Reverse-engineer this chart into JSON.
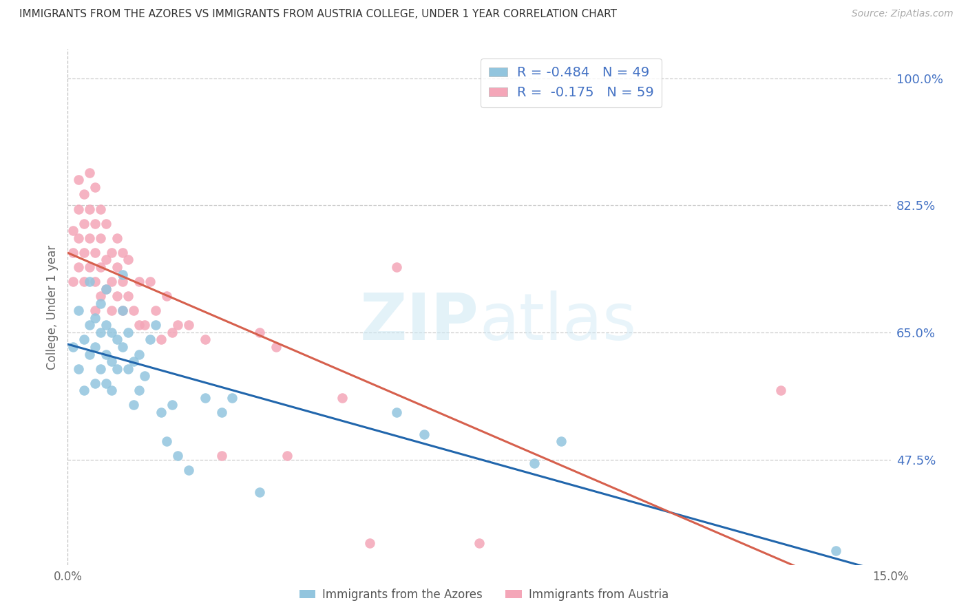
{
  "title": "IMMIGRANTS FROM THE AZORES VS IMMIGRANTS FROM AUSTRIA COLLEGE, UNDER 1 YEAR CORRELATION CHART",
  "source": "Source: ZipAtlas.com",
  "ylabel_label": "College, Under 1 year",
  "xmin": 0.0,
  "xmax": 0.15,
  "ymin": 0.33,
  "ymax": 1.04,
  "legend_label1": "Immigrants from the Azores",
  "legend_label2": "Immigrants from Austria",
  "R1": -0.484,
  "N1": 49,
  "R2": -0.175,
  "N2": 59,
  "color_blue": "#92c5de",
  "color_pink": "#f4a6b8",
  "line_color_blue": "#2166ac",
  "line_color_pink": "#d6604d",
  "text_color": "#4472c4",
  "background_color": "#ffffff",
  "ytick_vals": [
    0.475,
    0.65,
    0.825,
    1.0
  ],
  "azores_x": [
    0.001,
    0.002,
    0.002,
    0.003,
    0.003,
    0.004,
    0.004,
    0.004,
    0.005,
    0.005,
    0.005,
    0.006,
    0.006,
    0.006,
    0.007,
    0.007,
    0.007,
    0.007,
    0.008,
    0.008,
    0.008,
    0.009,
    0.009,
    0.01,
    0.01,
    0.01,
    0.011,
    0.011,
    0.012,
    0.012,
    0.013,
    0.013,
    0.014,
    0.015,
    0.016,
    0.017,
    0.018,
    0.019,
    0.02,
    0.022,
    0.025,
    0.028,
    0.03,
    0.035,
    0.06,
    0.065,
    0.085,
    0.09,
    0.14
  ],
  "azores_y": [
    0.63,
    0.6,
    0.68,
    0.57,
    0.64,
    0.66,
    0.62,
    0.72,
    0.58,
    0.63,
    0.67,
    0.6,
    0.65,
    0.69,
    0.58,
    0.62,
    0.66,
    0.71,
    0.61,
    0.65,
    0.57,
    0.6,
    0.64,
    0.63,
    0.68,
    0.73,
    0.6,
    0.65,
    0.55,
    0.61,
    0.57,
    0.62,
    0.59,
    0.64,
    0.66,
    0.54,
    0.5,
    0.55,
    0.48,
    0.46,
    0.56,
    0.54,
    0.56,
    0.43,
    0.54,
    0.51,
    0.47,
    0.5,
    0.35
  ],
  "austria_x": [
    0.001,
    0.001,
    0.001,
    0.002,
    0.002,
    0.002,
    0.002,
    0.003,
    0.003,
    0.003,
    0.003,
    0.004,
    0.004,
    0.004,
    0.004,
    0.005,
    0.005,
    0.005,
    0.005,
    0.005,
    0.006,
    0.006,
    0.006,
    0.006,
    0.007,
    0.007,
    0.007,
    0.008,
    0.008,
    0.008,
    0.009,
    0.009,
    0.009,
    0.01,
    0.01,
    0.01,
    0.011,
    0.011,
    0.012,
    0.013,
    0.013,
    0.014,
    0.015,
    0.016,
    0.017,
    0.018,
    0.019,
    0.02,
    0.022,
    0.025,
    0.028,
    0.035,
    0.038,
    0.04,
    0.05,
    0.055,
    0.06,
    0.075,
    0.13
  ],
  "austria_y": [
    0.72,
    0.76,
    0.79,
    0.74,
    0.78,
    0.82,
    0.86,
    0.72,
    0.76,
    0.8,
    0.84,
    0.74,
    0.78,
    0.82,
    0.87,
    0.68,
    0.72,
    0.76,
    0.8,
    0.85,
    0.7,
    0.74,
    0.78,
    0.82,
    0.71,
    0.75,
    0.8,
    0.68,
    0.72,
    0.76,
    0.7,
    0.74,
    0.78,
    0.68,
    0.72,
    0.76,
    0.7,
    0.75,
    0.68,
    0.66,
    0.72,
    0.66,
    0.72,
    0.68,
    0.64,
    0.7,
    0.65,
    0.66,
    0.66,
    0.64,
    0.48,
    0.65,
    0.63,
    0.48,
    0.56,
    0.36,
    0.74,
    0.36,
    0.57
  ]
}
